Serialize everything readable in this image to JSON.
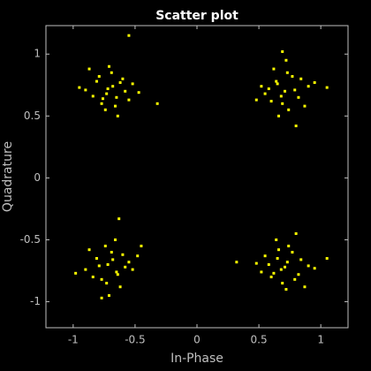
{
  "chart_data": {
    "type": "scatter",
    "title": "Scatter plot",
    "x_label": "In-Phase",
    "y_label": "Quadrature",
    "color": "#ffff00",
    "xlim": [
      -1.22,
      1.22
    ],
    "ylim": [
      -1.21,
      1.23
    ],
    "xticks": [
      -1,
      -0.5,
      0,
      0.5,
      1
    ],
    "yticks": [
      -1,
      -0.5,
      0,
      0.5,
      1
    ],
    "x": [
      -0.72,
      -0.65,
      -0.81,
      -0.58,
      -0.77,
      -0.69,
      -0.9,
      -0.62,
      -0.74,
      -0.55,
      -0.84,
      -0.68,
      -0.71,
      -0.6,
      -0.79,
      -0.47,
      -0.95,
      -0.66,
      -0.73,
      -0.52,
      -0.87,
      -0.64,
      -0.76,
      -0.32,
      -0.55,
      0.71,
      0.65,
      0.82,
      0.58,
      0.77,
      0.69,
      0.9,
      0.62,
      0.74,
      0.55,
      0.84,
      0.68,
      0.72,
      0.6,
      0.79,
      0.48,
      0.95,
      0.66,
      0.73,
      0.52,
      0.87,
      0.64,
      1.05,
      0.8,
      0.69,
      -0.72,
      -0.65,
      -0.81,
      -0.58,
      -0.77,
      -0.69,
      -0.9,
      -0.62,
      -0.74,
      -0.55,
      -0.84,
      -0.68,
      -0.71,
      -0.6,
      -0.79,
      -0.48,
      -0.98,
      -0.66,
      -0.73,
      -0.52,
      -0.87,
      -0.64,
      -0.45,
      -0.77,
      -0.63,
      0.71,
      0.65,
      0.82,
      0.58,
      0.77,
      0.69,
      0.9,
      0.62,
      0.74,
      0.55,
      0.84,
      0.68,
      0.72,
      0.6,
      0.79,
      0.48,
      0.95,
      0.66,
      0.73,
      0.52,
      0.87,
      0.64,
      1.05,
      0.32,
      0.8
    ],
    "y": [
      0.72,
      0.65,
      0.78,
      0.7,
      0.6,
      0.85,
      0.71,
      0.77,
      0.55,
      0.63,
      0.66,
      0.74,
      0.9,
      0.8,
      0.82,
      0.69,
      0.73,
      0.58,
      0.68,
      0.76,
      0.88,
      0.5,
      0.64,
      0.6,
      1.15,
      0.7,
      0.76,
      0.65,
      0.72,
      0.82,
      0.6,
      0.74,
      0.88,
      0.55,
      0.68,
      0.8,
      0.66,
      0.95,
      0.62,
      0.71,
      0.63,
      0.77,
      0.5,
      0.85,
      0.74,
      0.58,
      0.78,
      0.73,
      0.42,
      1.02,
      -0.7,
      -0.76,
      -0.65,
      -0.72,
      -0.82,
      -0.6,
      -0.74,
      -0.88,
      -0.55,
      -0.68,
      -0.8,
      -0.66,
      -0.95,
      -0.62,
      -0.71,
      -0.63,
      -0.77,
      -0.5,
      -0.85,
      -0.74,
      -0.58,
      -0.78,
      -0.55,
      -0.97,
      -0.33,
      -0.72,
      -0.65,
      -0.78,
      -0.7,
      -0.6,
      -0.85,
      -0.71,
      -0.77,
      -0.55,
      -0.63,
      -0.66,
      -0.74,
      -0.9,
      -0.8,
      -0.82,
      -0.69,
      -0.73,
      -0.58,
      -0.68,
      -0.76,
      -0.88,
      -0.5,
      -0.65,
      -0.68,
      -0.45
    ]
  }
}
